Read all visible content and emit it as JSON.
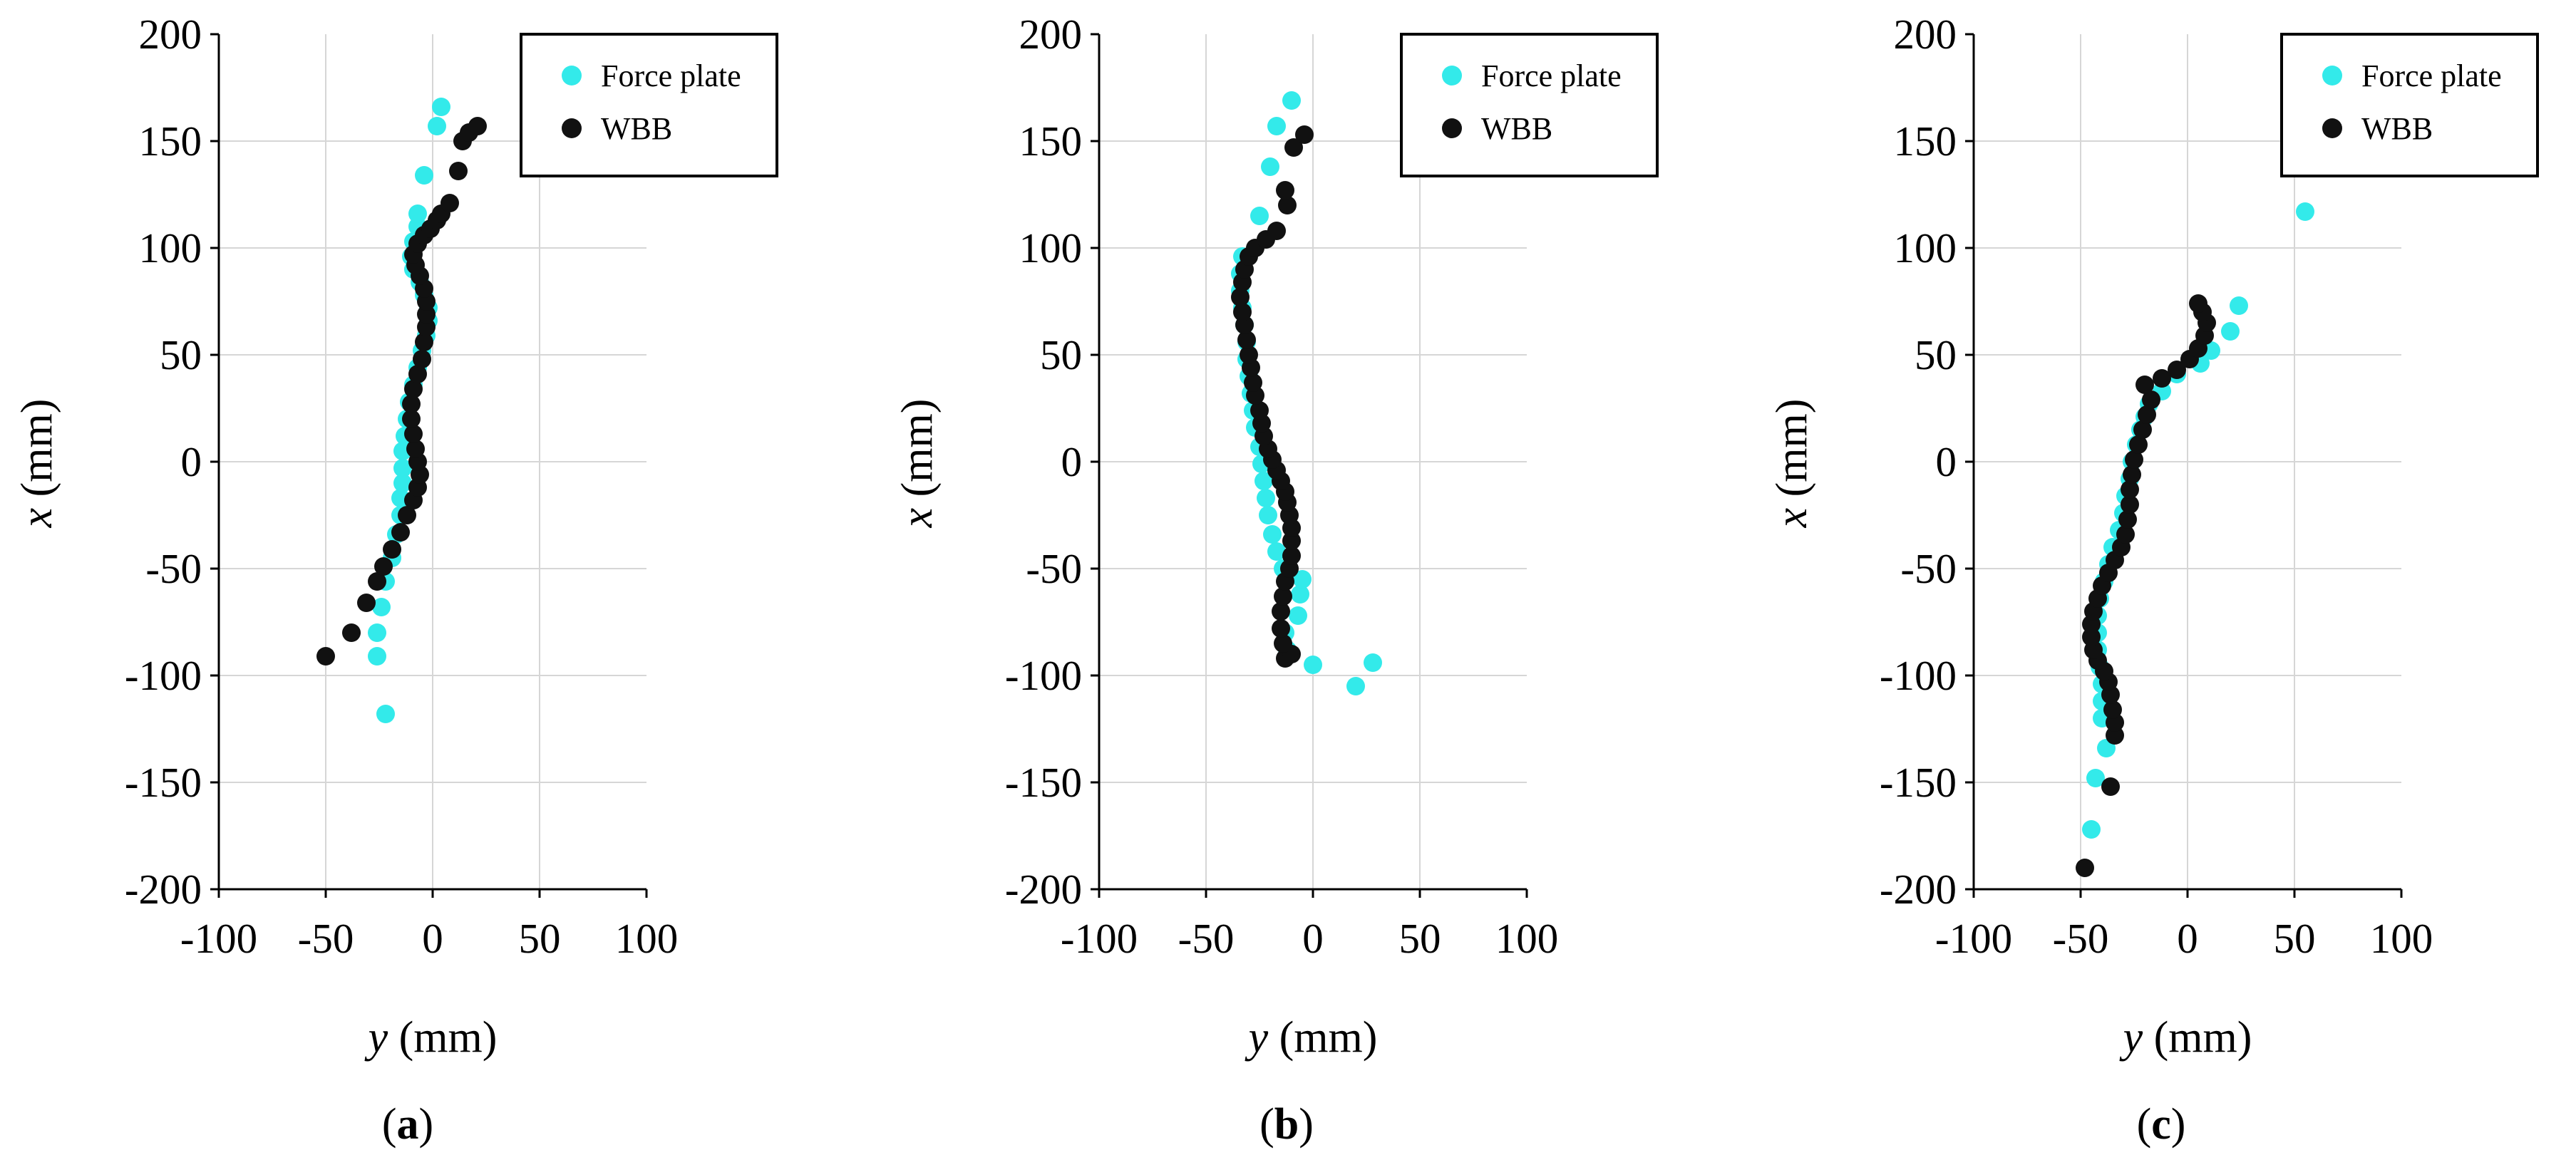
{
  "chart_data": [
    {
      "type": "scatter",
      "panel_label": "(a)",
      "panel_letter": "a",
      "xlabel_var": "y",
      "xlabel_unit": " (mm)",
      "ylabel_var": "x",
      "ylabel_unit": " (mm)",
      "xlim": [
        -100,
        100
      ],
      "ylim": [
        -200,
        200
      ],
      "xticks": [
        -100,
        -50,
        0,
        50,
        100
      ],
      "yticks": [
        -200,
        -150,
        -100,
        -50,
        0,
        50,
        100,
        150,
        200
      ],
      "grid": true,
      "legend": [
        "Force plate",
        "WBB"
      ],
      "legend_position": "top-right",
      "series": [
        {
          "name": "Force plate",
          "color": "#33eaea",
          "points": [
            [
              -22,
              -118
            ],
            [
              -26,
              -91
            ],
            [
              -26,
              -80
            ],
            [
              -24,
              -68
            ],
            [
              -22,
              -56
            ],
            [
              -19,
              -45
            ],
            [
              -17,
              -34
            ],
            [
              -15,
              -25
            ],
            [
              -15,
              -17
            ],
            [
              -14,
              -10
            ],
            [
              -14,
              -3
            ],
            [
              -14,
              5
            ],
            [
              -13,
              12
            ],
            [
              -12,
              20
            ],
            [
              -11,
              28
            ],
            [
              -9,
              36
            ],
            [
              -7,
              44
            ],
            [
              -5,
              52
            ],
            [
              -3,
              59
            ],
            [
              -2,
              66
            ],
            [
              -2,
              72
            ],
            [
              -4,
              78
            ],
            [
              -6,
              84
            ],
            [
              -9,
              90
            ],
            [
              -10,
              96
            ],
            [
              -9,
              103
            ],
            [
              -7,
              110
            ],
            [
              -7,
              116
            ],
            [
              -4,
              134
            ],
            [
              2,
              157
            ],
            [
              4,
              166
            ]
          ]
        },
        {
          "name": "WBB",
          "color": "#111111",
          "points": [
            [
              -50,
              -91
            ],
            [
              -38,
              -80
            ],
            [
              -31,
              -66
            ],
            [
              -26,
              -56
            ],
            [
              -23,
              -49
            ],
            [
              -19,
              -41
            ],
            [
              -15,
              -33
            ],
            [
              -12,
              -25
            ],
            [
              -9,
              -18
            ],
            [
              -7,
              -12
            ],
            [
              -6,
              -6
            ],
            [
              -7,
              0
            ],
            [
              -8,
              6
            ],
            [
              -9,
              13
            ],
            [
              -10,
              20
            ],
            [
              -10,
              27
            ],
            [
              -9,
              34
            ],
            [
              -7,
              41
            ],
            [
              -5,
              48
            ],
            [
              -4,
              56
            ],
            [
              -3,
              63
            ],
            [
              -3,
              69
            ],
            [
              -3,
              75
            ],
            [
              -4,
              81
            ],
            [
              -6,
              87
            ],
            [
              -8,
              92
            ],
            [
              -9,
              97
            ],
            [
              -7,
              102
            ],
            [
              -4,
              106
            ],
            [
              -1,
              109
            ],
            [
              2,
              113
            ],
            [
              4,
              116
            ],
            [
              8,
              121
            ],
            [
              12,
              136
            ],
            [
              14,
              150
            ],
            [
              17,
              154
            ],
            [
              21,
              157
            ]
          ]
        }
      ]
    },
    {
      "type": "scatter",
      "panel_label": "(b)",
      "panel_letter": "b",
      "xlabel_var": "y",
      "xlabel_unit": " (mm)",
      "ylabel_var": "x",
      "ylabel_unit": " (mm)",
      "xlim": [
        -100,
        100
      ],
      "ylim": [
        -200,
        200
      ],
      "xticks": [
        -100,
        -50,
        0,
        50,
        100
      ],
      "yticks": [
        -200,
        -150,
        -100,
        -50,
        0,
        50,
        100,
        150,
        200
      ],
      "grid": true,
      "legend": [
        "Force plate",
        "WBB"
      ],
      "legend_position": "top-right",
      "series": [
        {
          "name": "Force plate",
          "color": "#33eaea",
          "points": [
            [
              20,
              -105
            ],
            [
              28,
              -94
            ],
            [
              0,
              -95
            ],
            [
              -12,
              -88
            ],
            [
              -13,
              -80
            ],
            [
              -7,
              -72
            ],
            [
              -6,
              -62
            ],
            [
              -5,
              -55
            ],
            [
              -14,
              -50
            ],
            [
              -17,
              -42
            ],
            [
              -19,
              -34
            ],
            [
              -21,
              -25
            ],
            [
              -22,
              -17
            ],
            [
              -23,
              -9
            ],
            [
              -24,
              -1
            ],
            [
              -25,
              7
            ],
            [
              -27,
              16
            ],
            [
              -28,
              24
            ],
            [
              -29,
              32
            ],
            [
              -30,
              40
            ],
            [
              -31,
              48
            ],
            [
              -31,
              56
            ],
            [
              -32,
              64
            ],
            [
              -33,
              72
            ],
            [
              -34,
              80
            ],
            [
              -34,
              88
            ],
            [
              -33,
              96
            ],
            [
              -25,
              115
            ],
            [
              -20,
              138
            ],
            [
              -17,
              157
            ],
            [
              -10,
              169
            ]
          ]
        },
        {
          "name": "WBB",
          "color": "#111111",
          "points": [
            [
              -13,
              -92
            ],
            [
              -10,
              -90
            ],
            [
              -14,
              -85
            ],
            [
              -15,
              -78
            ],
            [
              -15,
              -70
            ],
            [
              -14,
              -63
            ],
            [
              -13,
              -56
            ],
            [
              -11,
              -50
            ],
            [
              -10,
              -44
            ],
            [
              -10,
              -37
            ],
            [
              -10,
              -31
            ],
            [
              -11,
              -25
            ],
            [
              -12,
              -19
            ],
            [
              -13,
              -14
            ],
            [
              -15,
              -9
            ],
            [
              -17,
              -4
            ],
            [
              -19,
              1
            ],
            [
              -21,
              6
            ],
            [
              -23,
              12
            ],
            [
              -24,
              18
            ],
            [
              -25,
              24
            ],
            [
              -27,
              31
            ],
            [
              -28,
              37
            ],
            [
              -29,
              44
            ],
            [
              -30,
              50
            ],
            [
              -31,
              57
            ],
            [
              -32,
              64
            ],
            [
              -33,
              70
            ],
            [
              -34,
              77
            ],
            [
              -33,
              84
            ],
            [
              -32,
              90
            ],
            [
              -30,
              96
            ],
            [
              -27,
              100
            ],
            [
              -22,
              104
            ],
            [
              -17,
              108
            ],
            [
              -12,
              120
            ],
            [
              -13,
              127
            ],
            [
              -9,
              147
            ],
            [
              -4,
              153
            ]
          ]
        }
      ]
    },
    {
      "type": "scatter",
      "panel_label": "(c)",
      "panel_letter": "c",
      "xlabel_var": "y",
      "xlabel_unit": " (mm)",
      "ylabel_var": "x",
      "ylabel_unit": " (mm)",
      "xlim": [
        -100,
        100
      ],
      "ylim": [
        -200,
        200
      ],
      "xticks": [
        -100,
        -50,
        0,
        50,
        100
      ],
      "yticks": [
        -200,
        -150,
        -100,
        -50,
        0,
        50,
        100,
        150,
        200
      ],
      "grid": true,
      "legend": [
        "Force plate",
        "WBB"
      ],
      "legend_position": "top-right",
      "series": [
        {
          "name": "Force plate",
          "color": "#33eaea",
          "points": [
            [
              55,
              117
            ],
            [
              24,
              73
            ],
            [
              20,
              61
            ],
            [
              11,
              52
            ],
            [
              6,
              46
            ],
            [
              -5,
              41
            ],
            [
              -12,
              33
            ],
            [
              -18,
              27
            ],
            [
              -20,
              21
            ],
            [
              -22,
              15
            ],
            [
              -24,
              8
            ],
            [
              -26,
              0
            ],
            [
              -27,
              -8
            ],
            [
              -29,
              -16
            ],
            [
              -30,
              -24
            ],
            [
              -32,
              -32
            ],
            [
              -35,
              -40
            ],
            [
              -37,
              -48
            ],
            [
              -39,
              -56
            ],
            [
              -41,
              -64
            ],
            [
              -42,
              -72
            ],
            [
              -42,
              -80
            ],
            [
              -42,
              -88
            ],
            [
              -41,
              -96
            ],
            [
              -40,
              -104
            ],
            [
              -40,
              -112
            ],
            [
              -40,
              -120
            ],
            [
              -38,
              -134
            ],
            [
              -43,
              -148
            ],
            [
              -45,
              -172
            ]
          ]
        },
        {
          "name": "WBB",
          "color": "#111111",
          "points": [
            [
              -48,
              -190
            ],
            [
              -36,
              -152
            ],
            [
              -34,
              -128
            ],
            [
              -34,
              -122
            ],
            [
              -35,
              -116
            ],
            [
              -36,
              -109
            ],
            [
              -37,
              -103
            ],
            [
              -39,
              -98
            ],
            [
              -42,
              -93
            ],
            [
              -44,
              -88
            ],
            [
              -45,
              -82
            ],
            [
              -45,
              -76
            ],
            [
              -44,
              -70
            ],
            [
              -42,
              -64
            ],
            [
              -40,
              -58
            ],
            [
              -37,
              -52
            ],
            [
              -34,
              -46
            ],
            [
              -31,
              -40
            ],
            [
              -29,
              -34
            ],
            [
              -28,
              -27
            ],
            [
              -27,
              -20
            ],
            [
              -27,
              -13
            ],
            [
              -26,
              -6
            ],
            [
              -25,
              1
            ],
            [
              -23,
              8
            ],
            [
              -21,
              15
            ],
            [
              -19,
              22
            ],
            [
              -17,
              29
            ],
            [
              -20,
              36
            ],
            [
              -12,
              39
            ],
            [
              -5,
              43
            ],
            [
              1,
              48
            ],
            [
              5,
              53
            ],
            [
              8,
              59
            ],
            [
              9,
              65
            ],
            [
              7,
              70
            ],
            [
              5,
              74
            ]
          ]
        }
      ]
    }
  ]
}
